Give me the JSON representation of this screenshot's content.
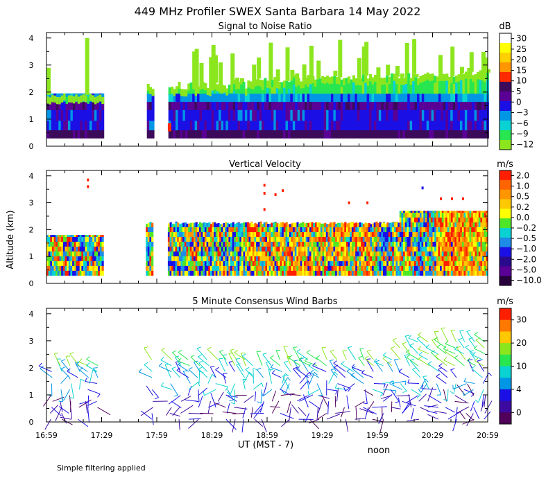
{
  "figure": {
    "title": "449 MHz Profiler SWEX Santa Barbara 14 May 2022",
    "ylabel": "Altitude (km)",
    "xlabel": "UT  (MST - 7)",
    "noon_label": "noon",
    "footnote": "Simple filtering applied",
    "x_ticks": [
      "16:59",
      "17:29",
      "17:59",
      "18:29",
      "18:59",
      "19:29",
      "19:59",
      "20:29",
      "20:59"
    ],
    "y_ticks": [
      "0",
      "1",
      "2",
      "3",
      "4"
    ]
  },
  "chart_data": [
    {
      "type": "heatmap",
      "title": "Signal to Noise Ratio",
      "x_range": [
        "16:59",
        "20:59"
      ],
      "ylim": [
        0,
        4.2
      ],
      "colorbar_unit": "dB",
      "colorbar_labels": [
        "30",
        "25",
        "20",
        "15",
        "10",
        "5",
        "0",
        "−3",
        "−6",
        "−9",
        "−12"
      ],
      "colorbar_colors": [
        "#ffffff",
        "#ffff00",
        "#ffd000",
        "#ff9500",
        "#ff2a00",
        "#3c0a5a",
        "#5a0096",
        "#1a10e6",
        "#0096e6",
        "#0ad2d2",
        "#28e650",
        "#8ce61e"
      ],
      "data_gaps": [
        [
          "17:30",
          "17:53"
        ],
        [
          "17:57",
          "18:05"
        ]
      ],
      "layers_km": {
        "strong_low_echo": [
          0.3,
          0.9
        ],
        "medium_layer": [
          0.9,
          1.8
        ],
        "weak_upper": [
          1.8,
          2.8
        ],
        "plumes_max": 4.0
      }
    },
    {
      "type": "heatmap",
      "title": "Vertical Velocity",
      "x_range": [
        "16:59",
        "20:59"
      ],
      "ylim": [
        0,
        4.2
      ],
      "colorbar_unit": "m/s",
      "colorbar_labels": [
        "2.0",
        "1.0",
        "0.5",
        "0.2",
        "0.0",
        "−0.2",
        "−0.5",
        "−1.0",
        "−2.0",
        "−5.0",
        "−10.0"
      ],
      "colorbar_colors": [
        "#ff1e00",
        "#ff6400",
        "#ff9600",
        "#ffc800",
        "#ffff00",
        "#50e628",
        "#0ad2d2",
        "#1e8ce6",
        "#1a10e6",
        "#2a0a8c",
        "#5a0096",
        "#28003c"
      ],
      "data_gaps": [
        [
          "17:30",
          "17:53"
        ],
        [
          "17:57",
          "18:05"
        ]
      ],
      "data_top_km": [
        1.8,
        2.8
      ]
    },
    {
      "type": "scatter",
      "title": "5 Minute Consensus Wind Barbs",
      "x_range": [
        "16:59",
        "20:59"
      ],
      "ylim": [
        0,
        4.2
      ],
      "colorbar_unit": "m/s",
      "colorbar_labels": [
        "30",
        "20",
        "10",
        "4",
        "0"
      ],
      "colorbar_colors": [
        "#ff1e00",
        "#ff7800",
        "#ffc800",
        "#8ce61e",
        "#28e650",
        "#0ad2d2",
        "#0096e6",
        "#1a10e6",
        "#3c0aa0",
        "#50005a"
      ],
      "speed_by_altitude": {
        "below_1km": "0-4",
        "1_to_2km": "4-10",
        "above_2km": "10-20"
      }
    }
  ]
}
